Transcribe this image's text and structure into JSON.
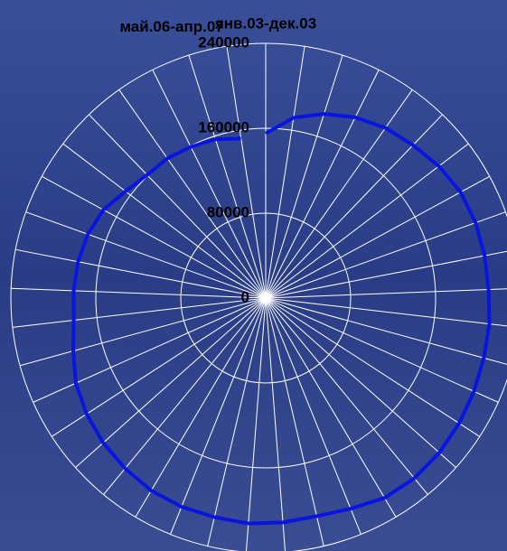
{
  "chart_data": {
    "type": "radar",
    "categories": [
      "янв.03-дек.03",
      null,
      null,
      null,
      null,
      null,
      null,
      null,
      null,
      null,
      null,
      null,
      null,
      null,
      null,
      null,
      null,
      null,
      null,
      null,
      null,
      null,
      null,
      null,
      null,
      null,
      null,
      null,
      null,
      null,
      null,
      null,
      null,
      null,
      null,
      null,
      null,
      null,
      null,
      null,
      "май.06-апр.07"
    ],
    "values": [
      155000,
      172000,
      182000,
      190000,
      196000,
      200000,
      205000,
      209000,
      210000,
      210000,
      210000,
      212000,
      213000,
      215000,
      217000,
      219000,
      220000,
      219000,
      214000,
      211000,
      212000,
      213000,
      212000,
      212000,
      211000,
      208000,
      205000,
      201000,
      196000,
      188000,
      182000,
      181000,
      180000,
      178000,
      174000,
      166000,
      161000,
      161000,
      159000,
      157000,
      152000
    ],
    "color": "#0a14e0",
    "rlim": [
      0,
      240000
    ],
    "rticks": [
      0,
      80000,
      160000,
      240000
    ],
    "grid": true
  }
}
